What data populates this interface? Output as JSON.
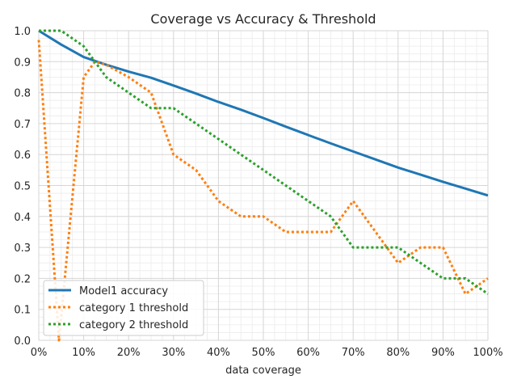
{
  "chart_data": {
    "type": "line",
    "title": "Coverage vs Accuracy & Threshold",
    "xlabel": "data coverage",
    "ylabel": "",
    "xlim": [
      0,
      1
    ],
    "ylim": [
      0,
      1
    ],
    "x_tick_labels": [
      "0%",
      "10%",
      "20%",
      "30%",
      "40%",
      "50%",
      "60%",
      "70%",
      "80%",
      "90%",
      "100%"
    ],
    "y_tick_labels": [
      "0.0",
      "0.1",
      "0.2",
      "0.3",
      "0.4",
      "0.5",
      "0.6",
      "0.7",
      "0.8",
      "0.9",
      "1.0"
    ],
    "grid": true,
    "legend_position": "lower-left",
    "series": [
      {
        "name": "Model1 accuracy",
        "color": "#1f77b4",
        "style": "solid",
        "x": [
          0,
          0.05,
          0.1,
          0.15,
          0.2,
          0.25,
          0.3,
          0.35,
          0.4,
          0.45,
          0.5,
          0.55,
          0.6,
          0.65,
          0.7,
          0.75,
          0.8,
          0.85,
          0.9,
          0.95,
          1.0
        ],
        "y": [
          1.0,
          0.955,
          0.915,
          0.89,
          0.868,
          0.848,
          0.823,
          0.797,
          0.77,
          0.745,
          0.718,
          0.69,
          0.663,
          0.636,
          0.61,
          0.584,
          0.558,
          0.535,
          0.512,
          0.49,
          0.468
        ]
      },
      {
        "name": "category 1 threshold",
        "color": "#ff7f0e",
        "style": "dotted",
        "x": [
          0,
          0.045,
          0.1,
          0.125,
          0.15,
          0.2,
          0.25,
          0.3,
          0.35,
          0.4,
          0.45,
          0.5,
          0.55,
          0.6,
          0.65,
          0.7,
          0.75,
          0.8,
          0.85,
          0.9,
          0.95,
          1.0
        ],
        "y": [
          0.97,
          0.0,
          0.85,
          0.9,
          0.89,
          0.85,
          0.8,
          0.6,
          0.55,
          0.45,
          0.4,
          0.4,
          0.35,
          0.35,
          0.35,
          0.45,
          0.35,
          0.25,
          0.3,
          0.3,
          0.15,
          0.2
        ]
      },
      {
        "name": "category 2 threshold",
        "color": "#2ca02c",
        "style": "dotted",
        "x": [
          0,
          0.05,
          0.1,
          0.15,
          0.2,
          0.25,
          0.3,
          0.35,
          0.4,
          0.45,
          0.5,
          0.55,
          0.6,
          0.65,
          0.7,
          0.75,
          0.8,
          0.85,
          0.9,
          0.95,
          1.0
        ],
        "y": [
          1.0,
          1.0,
          0.95,
          0.85,
          0.8,
          0.75,
          0.75,
          0.7,
          0.65,
          0.6,
          0.55,
          0.5,
          0.45,
          0.4,
          0.3,
          0.3,
          0.3,
          0.25,
          0.2,
          0.2,
          0.15
        ]
      }
    ]
  }
}
